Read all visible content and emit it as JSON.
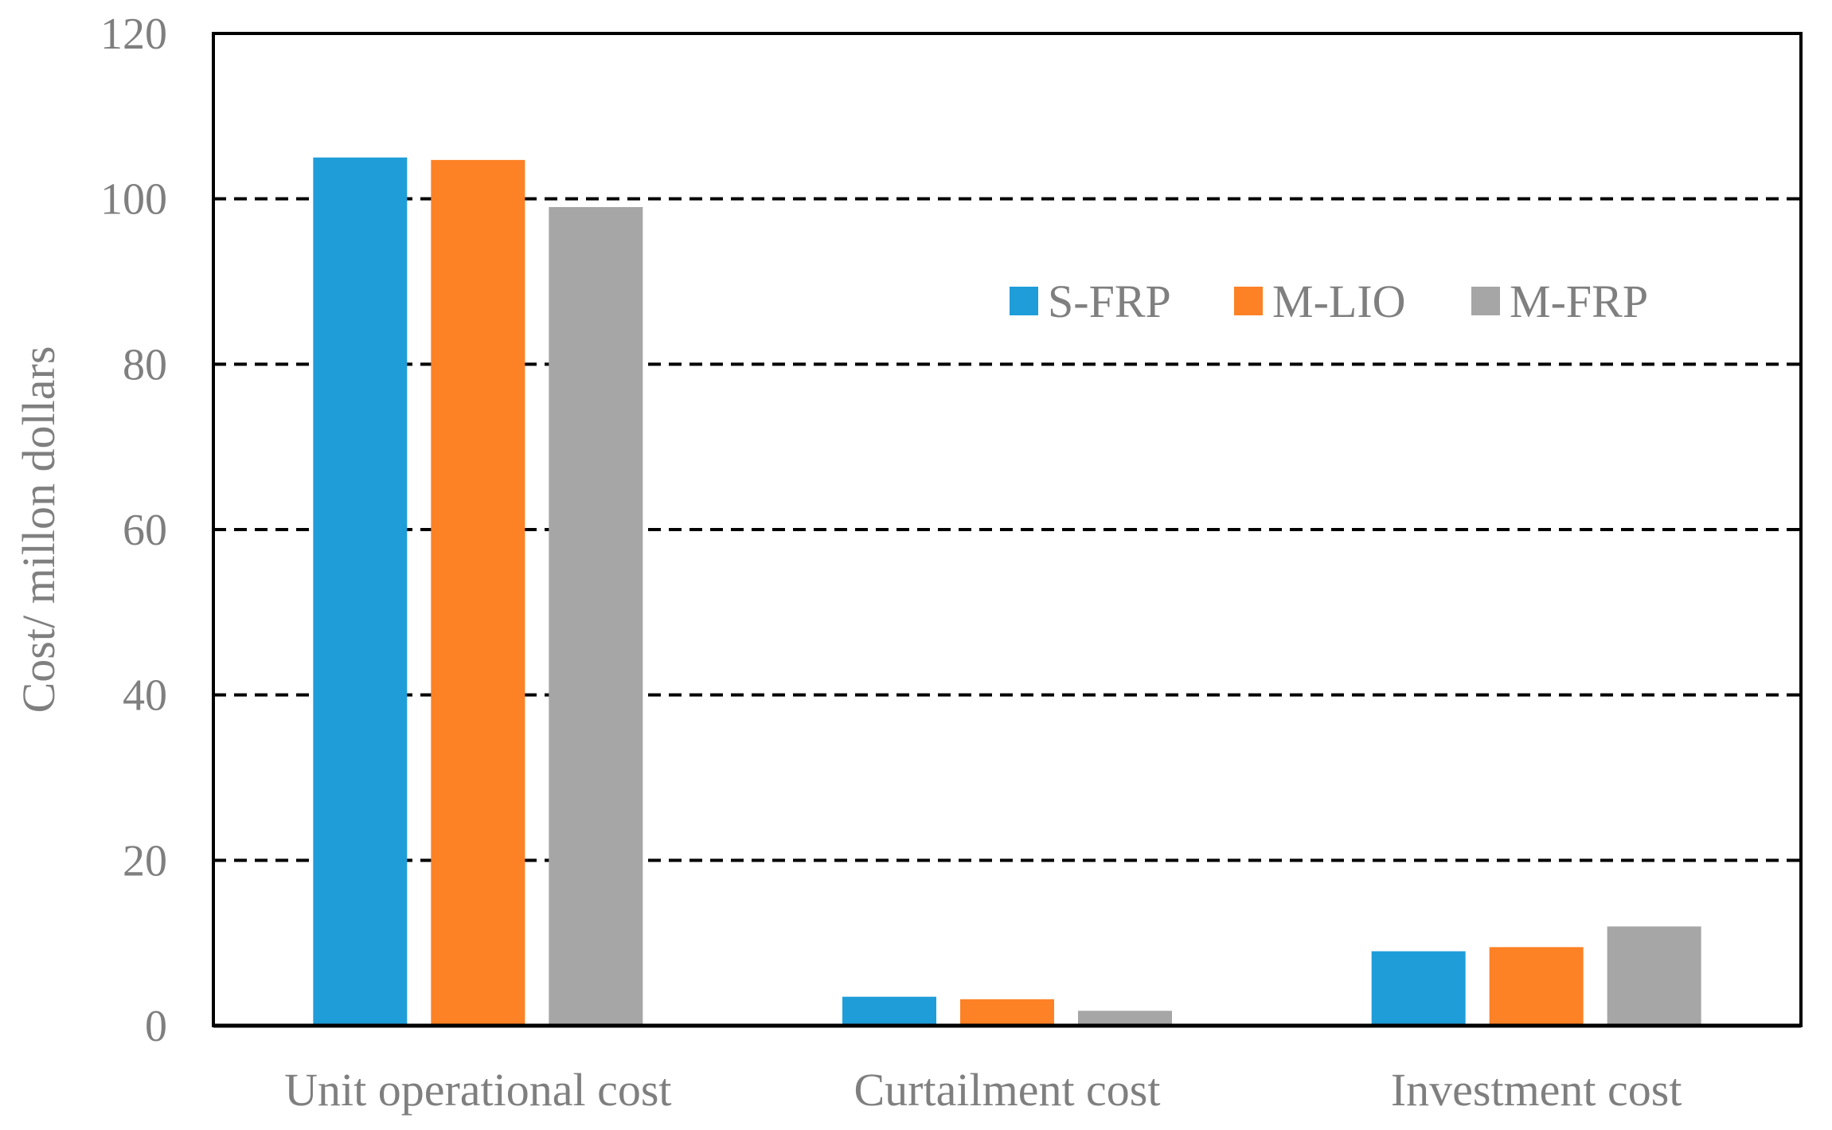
{
  "chart_data": {
    "type": "bar",
    "title": "",
    "xlabel": "",
    "ylabel": "Cost/  millon dollars",
    "ylim": [
      0,
      120
    ],
    "yticks": [
      0,
      20,
      40,
      60,
      80,
      100,
      120
    ],
    "grid": "horizontal dashed",
    "legend_position": "top-right",
    "categories": [
      "Unit operational cost",
      "Curtailment cost",
      "Investment cost"
    ],
    "series": [
      {
        "name": "S-FRP",
        "color": "#1f9dd9",
        "values": [
          105.0,
          3.5,
          9.0
        ]
      },
      {
        "name": "M-LIO",
        "color": "#fd8125",
        "values": [
          104.7,
          3.2,
          9.5
        ]
      },
      {
        "name": "M-FRP",
        "color": "#a6a6a6",
        "values": [
          99.0,
          1.8,
          12.0
        ]
      }
    ]
  }
}
